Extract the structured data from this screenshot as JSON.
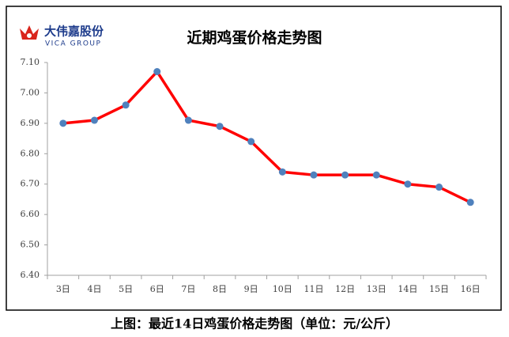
{
  "logo": {
    "name": "大伟嘉股份",
    "subname": "VICA GROUP"
  },
  "chart_data": {
    "type": "line",
    "title": "近期鸡蛋价格走势图",
    "categories": [
      "3日",
      "4日",
      "5日",
      "6日",
      "7日",
      "8日",
      "9日",
      "10日",
      "11日",
      "12日",
      "13日",
      "14日",
      "15日",
      "16日"
    ],
    "series": [
      {
        "name": "鸡蛋价格",
        "color": "#ff0000",
        "marker_color": "#4f81bd",
        "values": [
          6.9,
          6.91,
          6.96,
          7.07,
          6.91,
          6.89,
          6.84,
          6.74,
          6.73,
          6.73,
          6.73,
          6.7,
          6.69,
          6.64
        ]
      }
    ],
    "ylim": [
      6.4,
      7.1
    ],
    "yticks": [
      {
        "value": 6.4,
        "label": "6.40"
      },
      {
        "value": 6.5,
        "label": "6.50"
      },
      {
        "value": 6.6,
        "label": "6.60"
      },
      {
        "value": 6.7,
        "label": "6.70"
      },
      {
        "value": 6.8,
        "label": "6.80"
      },
      {
        "value": 6.9,
        "label": "6.90"
      },
      {
        "value": 7.0,
        "label": "7.00"
      },
      {
        "value": 7.1,
        "label": "7.10"
      }
    ],
    "grid": false,
    "legend": false
  },
  "caption": "上图：最近14日鸡蛋价格走势图（单位：元/公斤）"
}
